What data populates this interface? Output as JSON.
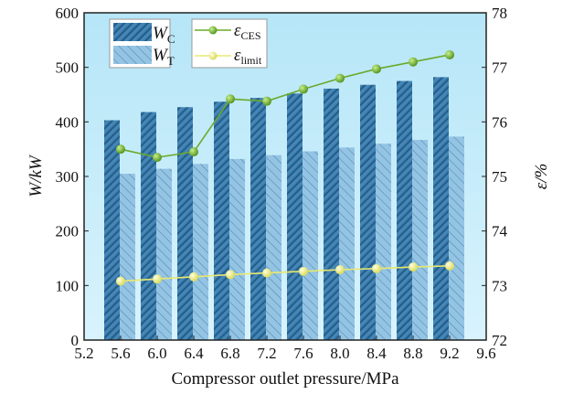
{
  "chart_data": {
    "type": "bar+line",
    "xlabel": "Compressor outlet pressure/MPa",
    "ylabel_left": "W/kW",
    "ylabel_right": "ε/%",
    "xlim": [
      5.2,
      9.6
    ],
    "xticks": [
      "5.2",
      "5.6",
      "6.0",
      "6.4",
      "6.8",
      "7.2",
      "7.6",
      "8.0",
      "8.4",
      "8.8",
      "9.2",
      "9.6"
    ],
    "ylim_left": [
      0,
      600
    ],
    "yticks_left": [
      "0",
      "100",
      "200",
      "300",
      "400",
      "500",
      "600"
    ],
    "ylim_right": [
      72,
      78
    ],
    "yticks_right": [
      "72",
      "73",
      "74",
      "75",
      "76",
      "77",
      "78"
    ],
    "x": [
      5.6,
      6.0,
      6.4,
      6.8,
      7.2,
      7.6,
      8.0,
      8.4,
      8.8,
      9.2
    ],
    "bar_series": [
      {
        "name": "W_C",
        "label_main": "W",
        "label_sub": "C",
        "color": "#2f6f9e",
        "values": [
          403,
          418,
          427,
          437,
          444,
          452,
          461,
          468,
          475,
          482
        ]
      },
      {
        "name": "W_T",
        "label_main": "W",
        "label_sub": "T",
        "color": "#8ebfe0",
        "values": [
          305,
          314,
          323,
          332,
          339,
          346,
          353,
          360,
          367,
          373
        ]
      }
    ],
    "line_series": [
      {
        "name": "ε_CES",
        "label_main": "ε",
        "label_sub": "CES",
        "color": "#6aaa2a",
        "values": [
          75.5,
          75.35,
          75.45,
          76.42,
          76.38,
          76.6,
          76.8,
          76.97,
          77.1,
          77.23
        ]
      },
      {
        "name": "ε_limit",
        "label_main": "ε",
        "label_sub": "limit",
        "color": "#e8e870",
        "values": [
          73.08,
          73.12,
          73.16,
          73.2,
          73.23,
          73.26,
          73.29,
          73.31,
          73.34,
          73.36
        ]
      }
    ],
    "legend_placement": "top-left"
  }
}
